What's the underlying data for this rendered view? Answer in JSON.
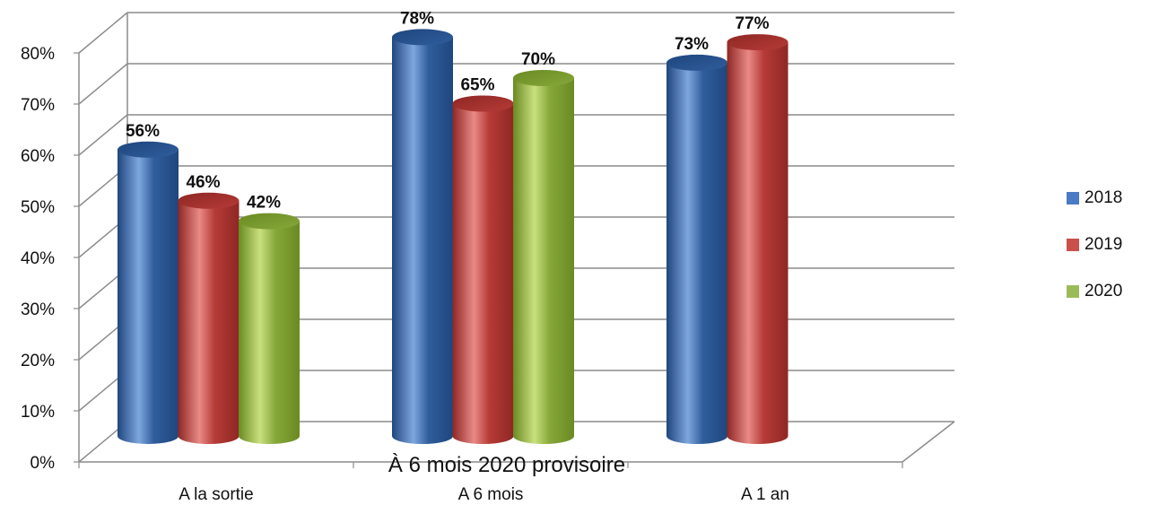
{
  "chart_data": {
    "type": "bar",
    "categories": [
      "A la sortie",
      "A 6 mois",
      "A 1 an"
    ],
    "series": [
      {
        "name": "2018",
        "values": [
          56,
          78,
          73
        ]
      },
      {
        "name": "2019",
        "values": [
          46,
          65,
          77
        ]
      },
      {
        "name": "2020",
        "values": [
          42,
          70,
          null
        ]
      }
    ],
    "data_labels": [
      [
        "56%",
        "78%",
        "73%"
      ],
      [
        "46%",
        "65%",
        "77%"
      ],
      [
        "42%",
        "70%",
        ""
      ]
    ],
    "y_ticks": [
      "0%",
      "10%",
      "20%",
      "30%",
      "40%",
      "50%",
      "60%",
      "70%",
      "80%"
    ],
    "ylim": [
      0,
      80
    ],
    "annotation": "À 6 mois 2020 provisoire",
    "legend_position": "right",
    "grid": true,
    "style": "3d-cylinder",
    "colors": {
      "2018": [
        "#2f5d9c",
        "#7ea6de",
        "#1f467e"
      ],
      "2019": [
        "#b63b37",
        "#e98a86",
        "#8e2724"
      ],
      "2020": [
        "#86a83a",
        "#c9e07f",
        "#6a8a22"
      ]
    }
  }
}
